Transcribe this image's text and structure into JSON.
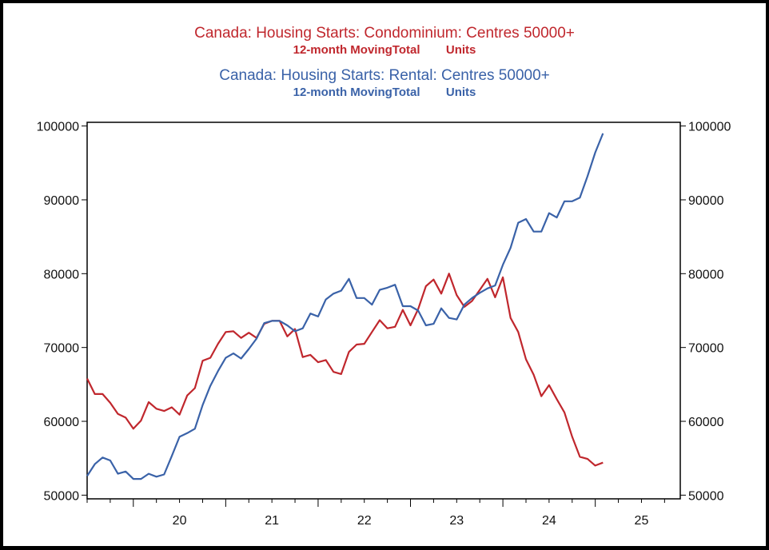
{
  "chart_data": {
    "type": "line",
    "titles": [
      {
        "text": "Canada: Housing Starts: Condominium: Centres 50000+",
        "sub_left": "12-month MovingTotal",
        "sub_right": "Units",
        "color": "#c0272d"
      },
      {
        "text": "Canada: Housing Starts: Rental: Centres 50000+",
        "sub_left": "12-month MovingTotal",
        "sub_right": "Units",
        "color": "#3a62a8"
      }
    ],
    "xlim": [
      2019.5,
      2025.92
    ],
    "ylim": [
      49500,
      100500
    ],
    "y_ticks": [
      50000,
      60000,
      70000,
      80000,
      90000,
      100000
    ],
    "y_tick_labels": [
      "50000",
      "60000",
      "70000",
      "80000",
      "90000",
      "100000"
    ],
    "x_tick_labels": [
      {
        "label": "20",
        "pos": 2020.0
      },
      {
        "label": "21",
        "pos": 2021.0
      },
      {
        "label": "22",
        "pos": 2022.0
      },
      {
        "label": "23",
        "pos": 2023.0
      },
      {
        "label": "24",
        "pos": 2024.0
      },
      {
        "label": "25",
        "pos": 2025.0
      }
    ],
    "grid": false,
    "legend": "none",
    "series": [
      {
        "color": "#c0272d",
        "x_start": 2019.5,
        "x_step": 0.08333,
        "values": [
          65800,
          63700,
          63700,
          62500,
          61000,
          60500,
          59000,
          60100,
          62600,
          61700,
          61400,
          61900,
          60900,
          63500,
          64500,
          68200,
          68600,
          70500,
          72100,
          72200,
          71300,
          72000,
          71300,
          73200,
          73600,
          73600,
          71500,
          72500,
          68700,
          69000,
          68000,
          68300,
          66700,
          66400,
          69400,
          70400,
          70500,
          72100,
          73700,
          72600,
          72800,
          75100,
          73000,
          75200,
          78300,
          79200,
          77300,
          80000,
          77100,
          75500,
          76300,
          77800,
          79300,
          76800,
          79500,
          74000,
          72100,
          68400,
          66300,
          63400,
          64900,
          63000,
          61200,
          57900,
          55200,
          54900,
          54000,
          54400
        ]
      },
      {
        "color": "#3a62a8",
        "x_start": 2019.5,
        "x_step": 0.08333,
        "values": [
          52600,
          54200,
          55100,
          54700,
          52900,
          53200,
          52200,
          52200,
          52900,
          52500,
          52800,
          55300,
          57900,
          58400,
          59000,
          62200,
          64800,
          66800,
          68600,
          69200,
          68500,
          69800,
          71200,
          73300,
          73600,
          73600,
          73000,
          72200,
          72600,
          74600,
          74200,
          76500,
          77300,
          77700,
          79300,
          76700,
          76700,
          75800,
          77800,
          78100,
          78500,
          75600,
          75600,
          75000,
          73000,
          73200,
          75300,
          74000,
          73800,
          75800,
          76700,
          77400,
          78000,
          78400,
          81200,
          83500,
          86900,
          87400,
          85700,
          85700,
          88200,
          87600,
          89800,
          89800,
          90300,
          93200,
          96400,
          99000
        ]
      }
    ]
  }
}
